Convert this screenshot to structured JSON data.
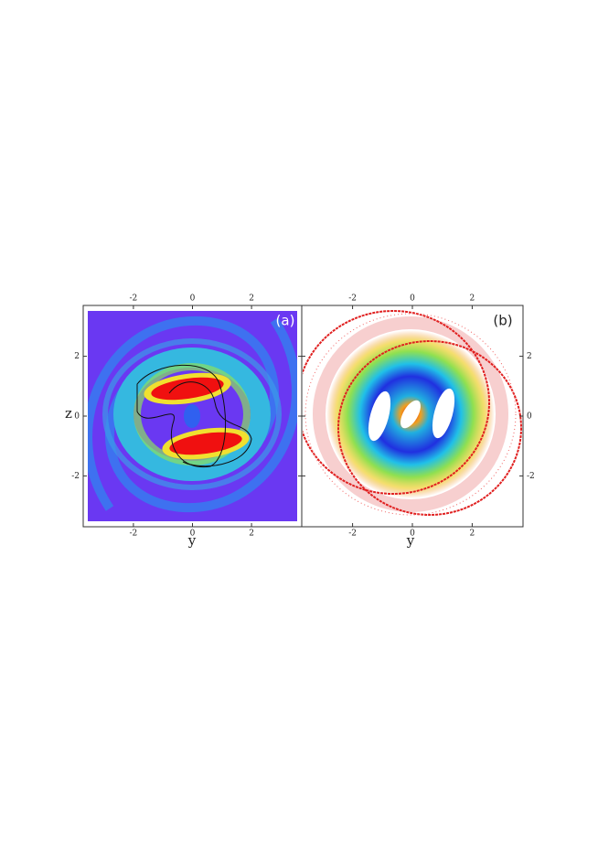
{
  "figure": {
    "panels": [
      {
        "label": "(a)",
        "xlabel": "y",
        "ylabel": "z",
        "xlim": [
          -3.7,
          3.7
        ],
        "ylim": [
          -3.7,
          3.7
        ],
        "xticks": [
          -2,
          0,
          2
        ],
        "yticks": [
          -2,
          0,
          2
        ]
      },
      {
        "label": "(b)",
        "xlabel": "y",
        "xlim": [
          -3.7,
          3.7
        ],
        "ylim": [
          -3.7,
          3.7
        ],
        "xticks": [
          -2,
          0,
          2
        ],
        "yticks": [
          -2,
          0,
          2
        ]
      }
    ]
  }
}
